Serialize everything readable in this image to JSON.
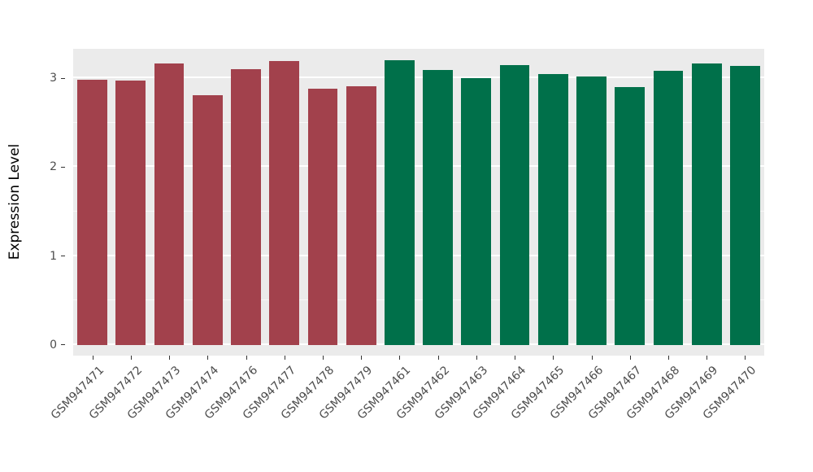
{
  "chart_data": {
    "type": "bar",
    "title": "",
    "xlabel": "",
    "ylabel": "Expression Level",
    "ylim": [
      -0.12,
      3.33
    ],
    "yticks": [
      0,
      1,
      2,
      3
    ],
    "minor_gridlines": [
      0.5,
      1.5,
      2.5
    ],
    "grid": true,
    "legend_position": "none",
    "panel_bg": "#EBEBEB",
    "grid_color": "#FFFFFF",
    "bars": [
      {
        "label": "GSM947471",
        "value": 2.98,
        "group": "maroon"
      },
      {
        "label": "GSM947472",
        "value": 2.97,
        "group": "maroon"
      },
      {
        "label": "GSM947473",
        "value": 3.17,
        "group": "maroon"
      },
      {
        "label": "GSM947474",
        "value": 2.81,
        "group": "maroon"
      },
      {
        "label": "GSM947476",
        "value": 3.1,
        "group": "maroon"
      },
      {
        "label": "GSM947477",
        "value": 3.19,
        "group": "maroon"
      },
      {
        "label": "GSM947478",
        "value": 2.88,
        "group": "maroon"
      },
      {
        "label": "GSM947479",
        "value": 2.91,
        "group": "maroon"
      },
      {
        "label": "GSM947461",
        "value": 3.2,
        "group": "green"
      },
      {
        "label": "GSM947462",
        "value": 3.09,
        "group": "green"
      },
      {
        "label": "GSM947463",
        "value": 3.0,
        "group": "green"
      },
      {
        "label": "GSM947464",
        "value": 3.15,
        "group": "green"
      },
      {
        "label": "GSM947465",
        "value": 3.05,
        "group": "green"
      },
      {
        "label": "GSM947466",
        "value": 3.02,
        "group": "green"
      },
      {
        "label": "GSM947467",
        "value": 2.9,
        "group": "green"
      },
      {
        "label": "GSM947468",
        "value": 3.08,
        "group": "green"
      },
      {
        "label": "GSM947469",
        "value": 3.17,
        "group": "green"
      },
      {
        "label": "GSM947470",
        "value": 3.14,
        "group": "green"
      }
    ],
    "group_colors": {
      "maroon": "#A2414C",
      "green": "#00704A"
    }
  }
}
